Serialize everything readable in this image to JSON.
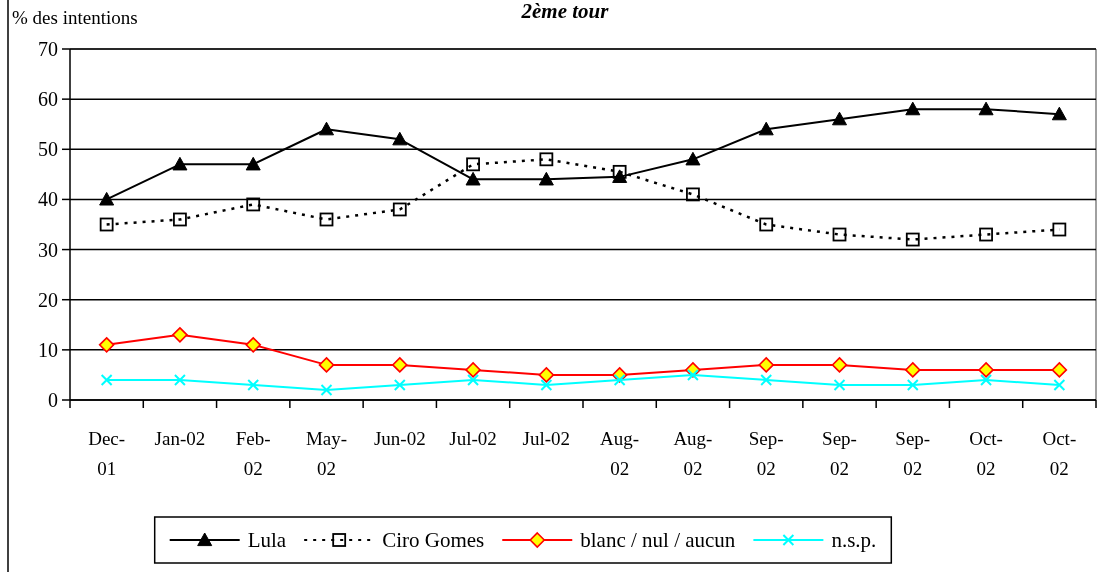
{
  "chart_data": {
    "type": "line",
    "title": "2ème tour",
    "ylabel": "% des intentions",
    "categories": [
      "Dec-01",
      "Jan-02",
      "Feb-02",
      "May-02",
      "Jun-02",
      "Jul-02",
      "Jul-02",
      "Aug-02",
      "Aug-02",
      "Sep-02",
      "Sep-02",
      "Sep-02",
      "Oct-02",
      "Oct-02"
    ],
    "series": [
      {
        "name": "Lula",
        "color": "#000000",
        "marker": "triangle",
        "line_style": "solid",
        "values": [
          40,
          47,
          47,
          54,
          52,
          44,
          44,
          44.5,
          48,
          54,
          56,
          58,
          58,
          57
        ]
      },
      {
        "name": "Ciro Gomes",
        "color": "#000000",
        "marker": "square",
        "line_style": "dotted",
        "values": [
          35,
          36,
          39,
          36,
          38,
          47,
          48,
          45.5,
          41,
          35,
          33,
          32,
          33,
          34
        ]
      },
      {
        "name": "blanc / nul / aucun",
        "color": "#ff0000",
        "marker": "diamond",
        "line_style": "solid",
        "values": [
          11,
          13,
          11,
          7,
          7,
          6,
          5,
          5,
          6,
          7,
          7,
          6,
          6,
          6
        ]
      },
      {
        "name": "n.s.p.",
        "color": "#00ffff",
        "marker": "cross",
        "line_style": "solid",
        "values": [
          4,
          4,
          3,
          2,
          3,
          4,
          3,
          4,
          5,
          4,
          3,
          3,
          4,
          3
        ]
      }
    ],
    "ylim": [
      0,
      70
    ],
    "yticks": [
      0,
      10,
      20,
      30,
      40,
      50,
      60,
      70
    ],
    "grid": "y",
    "legend": "bottom"
  }
}
